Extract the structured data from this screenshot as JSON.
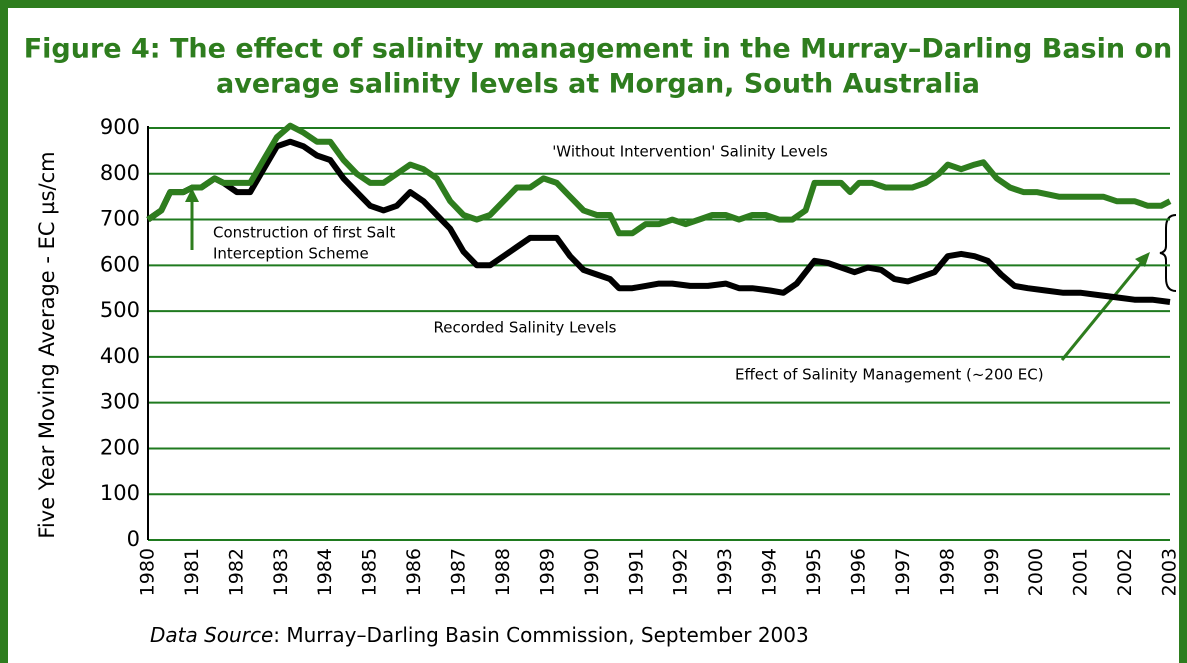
{
  "chart_data": {
    "type": "line",
    "title": [
      "Figure 4: The effect of salinity management in the Murray–Darling Basin on",
      "average salinity levels at Morgan, South Australia"
    ],
    "y_label": "Five Year Moving Average - EC µs/cm",
    "xlim": [
      1980,
      2003
    ],
    "xticks": [
      1980,
      1981,
      1982,
      1983,
      1984,
      1985,
      1986,
      1987,
      1988,
      1989,
      1990,
      1991,
      1992,
      1993,
      1994,
      1995,
      1996,
      1997,
      1998,
      1999,
      2000,
      2001,
      2002,
      2003
    ],
    "ylim": [
      0,
      900
    ],
    "yticks": [
      0,
      100,
      200,
      300,
      400,
      500,
      600,
      700,
      800,
      900
    ],
    "grid": true,
    "grid_color": "#1f7a1f",
    "series": [
      {
        "name": "'Without Intervention' Salinity Levels",
        "color": "#2e7d1e",
        "x": [
          1980.0,
          1980.3,
          1980.5,
          1980.8,
          1981.0,
          1981.2,
          1981.5,
          1981.7,
          1982.0,
          1982.3,
          1982.6,
          1982.9,
          1983.2,
          1983.5,
          1983.8,
          1984.1,
          1984.4,
          1984.7,
          1985.0,
          1985.3,
          1985.6,
          1985.9,
          1986.2,
          1986.5,
          1986.8,
          1987.1,
          1987.4,
          1987.7,
          1988.0,
          1988.3,
          1988.6,
          1988.9,
          1989.2,
          1989.5,
          1989.8,
          1990.1,
          1990.4,
          1990.6,
          1990.9,
          1991.2,
          1991.5,
          1991.8,
          1992.1,
          1992.4,
          1992.7,
          1993.0,
          1993.3,
          1993.6,
          1993.9,
          1994.2,
          1994.5,
          1994.8,
          1995.0,
          1995.3,
          1995.6,
          1995.8,
          1996.0,
          1996.3,
          1996.6,
          1996.9,
          1997.2,
          1997.5,
          1997.8,
          1998.0,
          1998.3,
          1998.6,
          1998.8,
          1999.1,
          1999.4,
          1999.7,
          2000.0,
          2000.5,
          2001.0,
          2001.5,
          2001.8,
          2002.2,
          2002.5,
          2002.8,
          2003.0
        ],
        "values": [
          700,
          720,
          760,
          760,
          770,
          770,
          790,
          780,
          780,
          780,
          830,
          880,
          905,
          890,
          870,
          870,
          830,
          800,
          780,
          780,
          800,
          820,
          810,
          790,
          740,
          710,
          700,
          710,
          740,
          770,
          770,
          790,
          780,
          750,
          720,
          710,
          710,
          670,
          670,
          690,
          690,
          700,
          690,
          700,
          710,
          710,
          700,
          710,
          710,
          700,
          700,
          720,
          780,
          780,
          780,
          760,
          780,
          780,
          770,
          770,
          770,
          780,
          800,
          820,
          810,
          820,
          825,
          790,
          770,
          760,
          760,
          750,
          750,
          750,
          740,
          740,
          730,
          730,
          740
        ]
      },
      {
        "name": "Recorded Salinity Levels",
        "color": "#000000",
        "x": [
          1980.0,
          1980.3,
          1980.5,
          1980.8,
          1981.0,
          1981.2,
          1981.5,
          1981.7,
          1982.0,
          1982.3,
          1982.6,
          1982.9,
          1983.2,
          1983.5,
          1983.8,
          1984.1,
          1984.4,
          1984.7,
          1985.0,
          1985.3,
          1985.6,
          1985.9,
          1986.2,
          1986.5,
          1986.8,
          1987.1,
          1987.4,
          1987.7,
          1988.0,
          1988.3,
          1988.6,
          1988.9,
          1989.2,
          1989.5,
          1989.8,
          1990.1,
          1990.4,
          1990.6,
          1990.9,
          1991.2,
          1991.5,
          1991.8,
          1992.2,
          1992.6,
          1993.0,
          1993.3,
          1993.6,
          1994.0,
          1994.3,
          1994.6,
          1995.0,
          1995.3,
          1995.6,
          1995.9,
          1996.2,
          1996.5,
          1996.8,
          1997.1,
          1997.4,
          1997.7,
          1998.0,
          1998.3,
          1998.6,
          1998.9,
          1999.2,
          1999.5,
          1999.8,
          2000.2,
          2000.6,
          2001.0,
          2001.4,
          2001.8,
          2002.2,
          2002.6,
          2003.0
        ],
        "values": [
          700,
          720,
          760,
          760,
          770,
          770,
          790,
          780,
          760,
          760,
          810,
          860,
          870,
          860,
          840,
          830,
          790,
          760,
          730,
          720,
          730,
          760,
          740,
          710,
          680,
          630,
          600,
          600,
          620,
          640,
          660,
          660,
          660,
          620,
          590,
          580,
          570,
          550,
          550,
          555,
          560,
          560,
          555,
          555,
          560,
          550,
          550,
          545,
          540,
          560,
          610,
          605,
          595,
          585,
          595,
          590,
          570,
          565,
          575,
          585,
          620,
          625,
          620,
          610,
          580,
          555,
          550,
          545,
          540,
          540,
          535,
          530,
          525,
          525,
          520
        ]
      }
    ],
    "annotations": {
      "construction": [
        "Construction of first Salt",
        "Interception Scheme"
      ],
      "effect": "Effect of Salinity Management (~200 EC)"
    },
    "source": {
      "label": "Data Source",
      "text": ": Murray–Darling Basin Commission, September 2003"
    }
  }
}
